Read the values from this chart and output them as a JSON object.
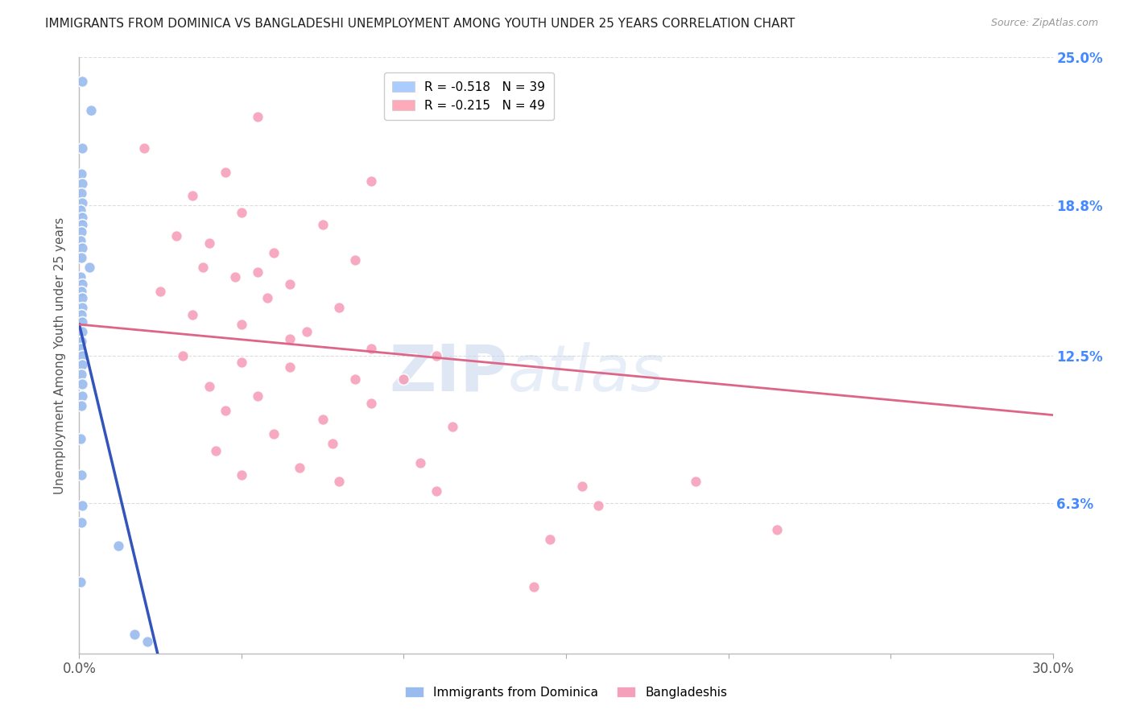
{
  "title": "IMMIGRANTS FROM DOMINICA VS BANGLADESHI UNEMPLOYMENT AMONG YOUTH UNDER 25 YEARS CORRELATION CHART",
  "source": "Source: ZipAtlas.com",
  "ylabel": "Unemployment Among Youth under 25 years",
  "xmin": 0.0,
  "xmax": 30.0,
  "ymin": 0.0,
  "ymax": 25.0,
  "right_yticks": [
    6.3,
    12.5,
    18.8,
    25.0
  ],
  "right_yticklabels": [
    "6.3%",
    "12.5%",
    "18.8%",
    "25.0%"
  ],
  "watermark_zip": "ZIP",
  "watermark_atlas": "atlas",
  "legend_entries": [
    {
      "label": "R = -0.518   N = 39",
      "color": "#aaccff"
    },
    {
      "label": "R = -0.215   N = 49",
      "color": "#ffaabb"
    }
  ],
  "blue_scatter": [
    [
      0.08,
      24.0
    ],
    [
      0.35,
      22.8
    ],
    [
      0.08,
      21.2
    ],
    [
      0.07,
      20.1
    ],
    [
      0.1,
      19.7
    ],
    [
      0.06,
      19.3
    ],
    [
      0.08,
      18.9
    ],
    [
      0.05,
      18.6
    ],
    [
      0.1,
      18.3
    ],
    [
      0.08,
      18.0
    ],
    [
      0.06,
      17.7
    ],
    [
      0.05,
      17.3
    ],
    [
      0.1,
      17.0
    ],
    [
      0.07,
      16.6
    ],
    [
      0.3,
      16.2
    ],
    [
      0.05,
      15.8
    ],
    [
      0.08,
      15.5
    ],
    [
      0.06,
      15.2
    ],
    [
      0.1,
      14.9
    ],
    [
      0.08,
      14.5
    ],
    [
      0.06,
      14.2
    ],
    [
      0.1,
      13.9
    ],
    [
      0.08,
      13.5
    ],
    [
      0.06,
      13.1
    ],
    [
      0.05,
      12.8
    ],
    [
      0.1,
      12.5
    ],
    [
      0.08,
      12.1
    ],
    [
      0.06,
      11.7
    ],
    [
      0.1,
      11.3
    ],
    [
      0.08,
      10.8
    ],
    [
      0.06,
      10.4
    ],
    [
      0.05,
      9.0
    ],
    [
      0.07,
      7.5
    ],
    [
      0.06,
      5.5
    ],
    [
      1.2,
      4.5
    ],
    [
      1.7,
      0.8
    ],
    [
      2.1,
      0.5
    ],
    [
      0.05,
      3.0
    ],
    [
      0.08,
      6.2
    ]
  ],
  "pink_scatter": [
    [
      5.5,
      22.5
    ],
    [
      2.0,
      21.2
    ],
    [
      4.5,
      20.2
    ],
    [
      9.0,
      19.8
    ],
    [
      3.5,
      19.2
    ],
    [
      5.0,
      18.5
    ],
    [
      7.5,
      18.0
    ],
    [
      3.0,
      17.5
    ],
    [
      4.0,
      17.2
    ],
    [
      6.0,
      16.8
    ],
    [
      8.5,
      16.5
    ],
    [
      3.8,
      16.2
    ],
    [
      5.5,
      16.0
    ],
    [
      4.8,
      15.8
    ],
    [
      6.5,
      15.5
    ],
    [
      2.5,
      15.2
    ],
    [
      5.8,
      14.9
    ],
    [
      8.0,
      14.5
    ],
    [
      3.5,
      14.2
    ],
    [
      5.0,
      13.8
    ],
    [
      7.0,
      13.5
    ],
    [
      6.5,
      13.2
    ],
    [
      9.0,
      12.8
    ],
    [
      3.2,
      12.5
    ],
    [
      11.0,
      12.5
    ],
    [
      5.0,
      12.2
    ],
    [
      6.5,
      12.0
    ],
    [
      8.5,
      11.5
    ],
    [
      10.0,
      11.5
    ],
    [
      4.0,
      11.2
    ],
    [
      5.5,
      10.8
    ],
    [
      9.0,
      10.5
    ],
    [
      4.5,
      10.2
    ],
    [
      7.5,
      9.8
    ],
    [
      11.5,
      9.5
    ],
    [
      6.0,
      9.2
    ],
    [
      7.8,
      8.8
    ],
    [
      4.2,
      8.5
    ],
    [
      10.5,
      8.0
    ],
    [
      6.8,
      7.8
    ],
    [
      5.0,
      7.5
    ],
    [
      8.0,
      7.2
    ],
    [
      15.5,
      7.0
    ],
    [
      19.0,
      7.2
    ],
    [
      11.0,
      6.8
    ],
    [
      16.0,
      6.2
    ],
    [
      14.5,
      4.8
    ],
    [
      21.5,
      5.2
    ],
    [
      14.0,
      2.8
    ]
  ],
  "blue_line": {
    "x0": 0.0,
    "x1": 2.5,
    "y0": 13.8,
    "y1": -0.5
  },
  "pink_line": {
    "x0": 0.0,
    "x1": 30.0,
    "y0": 13.8,
    "y1": 10.0
  },
  "blue_color": "#99bbee",
  "pink_color": "#f5a0bb",
  "blue_line_color": "#3355bb",
  "pink_line_color": "#dd6688",
  "marker_size": 100,
  "background_color": "#ffffff",
  "grid_color": "#dddddd",
  "title_color": "#222222",
  "axis_label_color": "#555555",
  "right_axis_color": "#4488ff"
}
